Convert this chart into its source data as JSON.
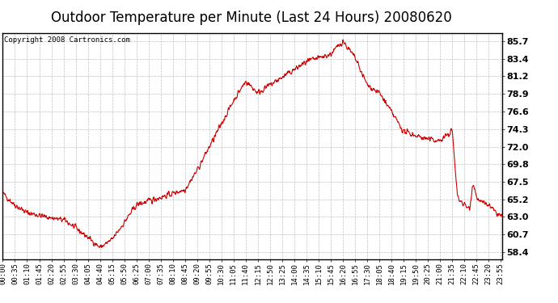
{
  "title": "Outdoor Temperature per Minute (Last 24 Hours) 20080620",
  "copyright": "Copyright 2008 Cartronics.com",
  "line_color": "#cc0000",
  "bg_color": "#ffffff",
  "plot_bg_color": "#ffffff",
  "grid_color": "#b0b0b0",
  "yticks": [
    58.4,
    60.7,
    63.0,
    65.2,
    67.5,
    69.8,
    72.0,
    74.3,
    76.6,
    78.9,
    81.2,
    83.4,
    85.7
  ],
  "ylim": [
    57.5,
    86.7
  ],
  "xtick_labels": [
    "00:00",
    "00:35",
    "01:10",
    "01:45",
    "02:20",
    "02:55",
    "03:30",
    "04:05",
    "04:40",
    "05:15",
    "05:50",
    "06:25",
    "07:00",
    "07:35",
    "08:10",
    "08:45",
    "09:20",
    "09:55",
    "10:30",
    "11:05",
    "11:40",
    "12:15",
    "12:50",
    "13:25",
    "14:00",
    "14:35",
    "15:10",
    "15:45",
    "16:20",
    "16:55",
    "17:30",
    "18:05",
    "18:40",
    "19:15",
    "19:50",
    "20:25",
    "21:00",
    "21:35",
    "22:10",
    "22:45",
    "23:20",
    "23:55"
  ],
  "title_fontsize": 12,
  "copyright_fontsize": 6.5,
  "tick_label_fontsize": 6.5,
  "y_tick_fontsize": 8,
  "keypoints_x": [
    0,
    35,
    70,
    120,
    180,
    240,
    280,
    315,
    385,
    420,
    455,
    490,
    525,
    560,
    595,
    630,
    665,
    700,
    735,
    770,
    805,
    840,
    875,
    910,
    945,
    980,
    1015,
    1050,
    1085,
    1120,
    1155,
    1190,
    1225,
    1260,
    1280,
    1295,
    1310,
    1330,
    1345,
    1355,
    1365,
    1380,
    1400,
    1420,
    1439
  ],
  "keypoints_y": [
    66.0,
    64.5,
    63.5,
    63.0,
    62.5,
    60.5,
    59.0,
    60.0,
    64.5,
    65.0,
    65.5,
    66.0,
    66.5,
    69.0,
    72.0,
    75.0,
    78.0,
    80.5,
    79.0,
    80.0,
    81.0,
    82.0,
    83.0,
    83.5,
    84.0,
    85.7,
    83.5,
    80.0,
    79.0,
    76.5,
    74.0,
    73.5,
    73.0,
    72.8,
    73.5,
    74.2,
    65.5,
    64.5,
    64.0,
    67.5,
    65.5,
    64.8,
    64.5,
    63.5,
    63.0
  ]
}
